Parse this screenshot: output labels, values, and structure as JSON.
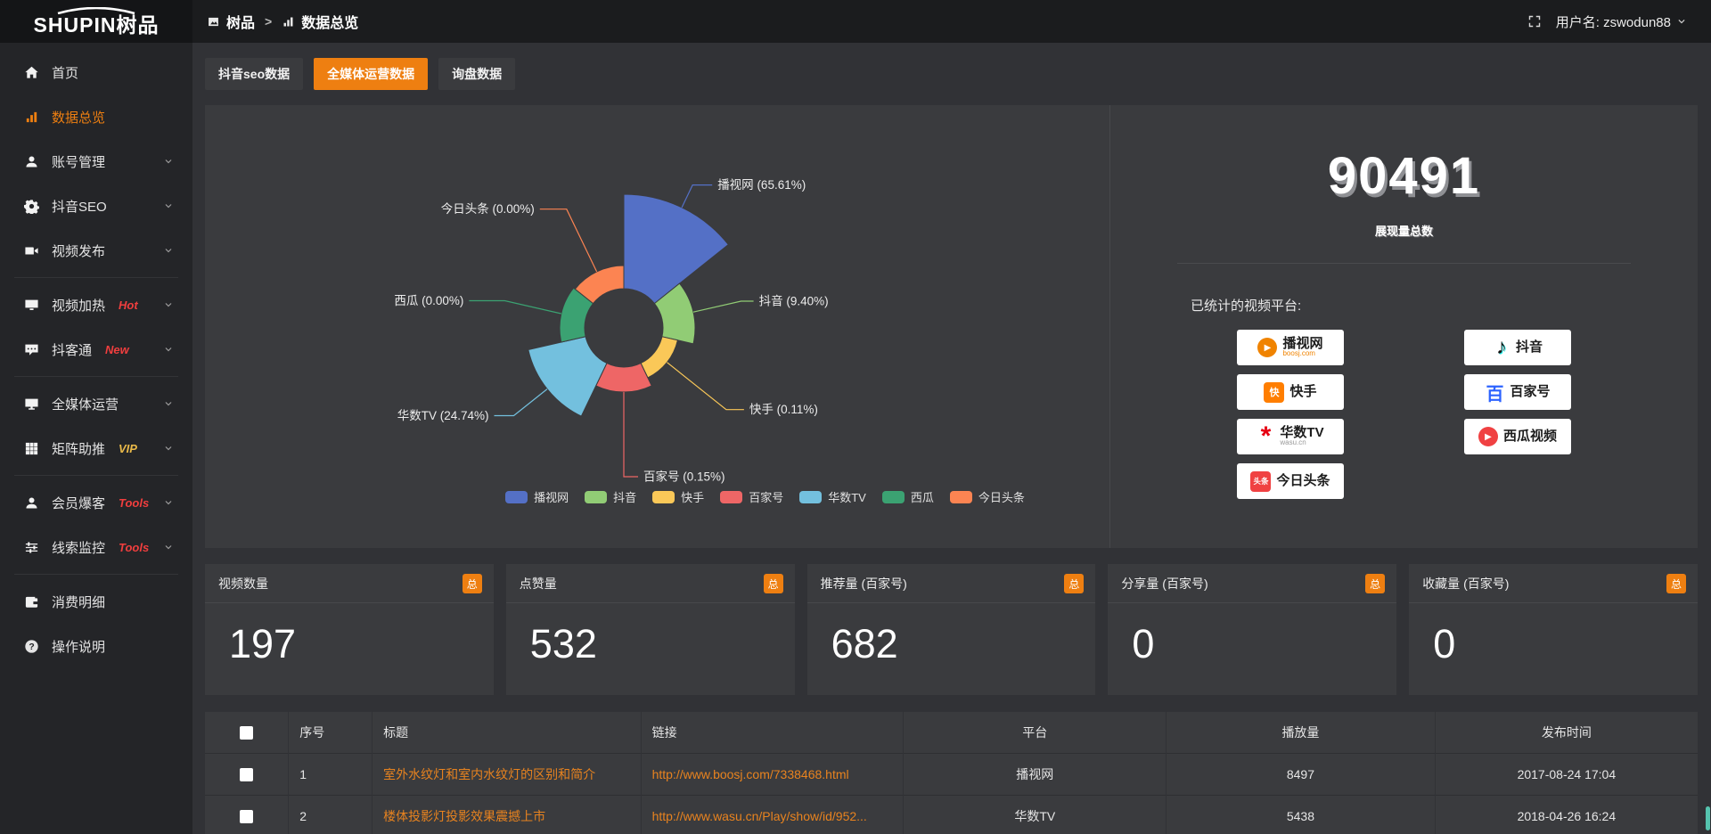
{
  "colors": {
    "accent": "#ee7f11",
    "panel": "#3a3b3e",
    "background": "#313236",
    "sidebar": "#242528",
    "topbar": "#1b1c1e",
    "link_orange": "#e8831f",
    "tag_red": "#f03e3e",
    "tag_yellow": "#e9b949",
    "scroll_green": "#55c3ae"
  },
  "brand": {
    "logo_text": "SHUPIN树品"
  },
  "topbar": {
    "breadcrumb": {
      "section": "树品",
      "separator": ">",
      "page": "数据总览"
    },
    "user_label": "用户名: zswodun88"
  },
  "sidebar": {
    "items": [
      {
        "id": "home",
        "icon": "home",
        "label": "首页"
      },
      {
        "id": "data-overview",
        "icon": "bar-chart",
        "label": "数据总览",
        "active": true
      },
      {
        "id": "account-management",
        "icon": "user",
        "label": "账号管理",
        "chevron": true
      },
      {
        "id": "douyin-seo",
        "icon": "gear",
        "label": "抖音SEO",
        "chevron": true
      },
      {
        "id": "video-publish",
        "icon": "video",
        "label": "视频发布",
        "chevron": true
      },
      {
        "type": "divider"
      },
      {
        "id": "video-heating",
        "icon": "monitor-play",
        "label": "视频加热",
        "tag": "Hot",
        "tag_color": "#f03e3e",
        "chevron": true
      },
      {
        "id": "douketong",
        "icon": "chat",
        "label": "抖客通",
        "tag": "New",
        "tag_color": "#f03e3e",
        "chevron": true
      },
      {
        "type": "divider"
      },
      {
        "id": "all-media-operation",
        "icon": "monitor",
        "label": "全媒体运营",
        "chevron": true
      },
      {
        "id": "matrix-boost",
        "icon": "grid",
        "label": "矩阵助推",
        "tag": "VIP",
        "tag_color": "#e9b949",
        "chevron": true
      },
      {
        "type": "divider"
      },
      {
        "id": "member-baoke",
        "icon": "user",
        "label": "会员爆客",
        "tag": "Tools",
        "tag_color": "#f03e3e",
        "chevron": true
      },
      {
        "id": "clue-monitor",
        "icon": "sliders",
        "label": "线索监控",
        "tag": "Tools",
        "tag_color": "#f03e3e",
        "chevron": true
      },
      {
        "type": "divider"
      },
      {
        "id": "consumption-detail",
        "icon": "wallet",
        "label": "消费明细"
      },
      {
        "id": "instructions",
        "icon": "help",
        "label": "操作说明"
      }
    ]
  },
  "tabs": {
    "active_index": 1,
    "items": [
      {
        "label": "抖音seo数据"
      },
      {
        "label": "全媒体运营数据"
      },
      {
        "label": "询盘数据"
      }
    ]
  },
  "chart_data": {
    "type": "pie",
    "subtype": "nightingale-rose",
    "title": "",
    "legend_position": "bottom",
    "total_label": "展现量总数",
    "total_value": 90491,
    "items": [
      {
        "name": "播视网",
        "pct": 65.61,
        "color": "#5470c6"
      },
      {
        "name": "抖音",
        "pct": 9.4,
        "color": "#91cc75"
      },
      {
        "name": "快手",
        "pct": 0.11,
        "color": "#fac858"
      },
      {
        "name": "百家号",
        "pct": 0.15,
        "color": "#ee6666"
      },
      {
        "name": "华数TV",
        "pct": 24.74,
        "color": "#73c0de"
      },
      {
        "name": "西瓜",
        "pct": 0.0,
        "color": "#3ba272"
      },
      {
        "name": "今日头条",
        "pct": 0.0,
        "color": "#fc8452"
      }
    ],
    "legend": [
      "播视网",
      "抖音",
      "快手",
      "百家号",
      "华数TV",
      "西瓜",
      "今日头条"
    ]
  },
  "summary": {
    "total": "90491",
    "caption": "展现量总数",
    "platforms_label": "已统计的视频平台:",
    "platform_columns": [
      [
        {
          "name": "播视网",
          "sub": "boosj.com",
          "icon": "boosj"
        },
        {
          "name": "快手",
          "icon": "kuaishou"
        },
        {
          "name": "华数TV",
          "sub": "wasu.cn",
          "icon": "wasu"
        },
        {
          "name": "今日头条",
          "icon": "toutiao"
        }
      ],
      [
        {
          "name": "抖音",
          "icon": "douyin"
        },
        {
          "name": "百家号",
          "icon": "baijiahao"
        },
        {
          "name": "西瓜视频",
          "icon": "xigua"
        }
      ]
    ]
  },
  "cards": [
    {
      "label": "视频数量",
      "badge": "总",
      "value": "197"
    },
    {
      "label": "点赞量",
      "badge": "总",
      "value": "532"
    },
    {
      "label": "推荐量 (百家号)",
      "badge": "总",
      "value": "682"
    },
    {
      "label": "分享量 (百家号)",
      "badge": "总",
      "value": "0"
    },
    {
      "label": "收藏量 (百家号)",
      "badge": "总",
      "value": "0"
    }
  ],
  "table": {
    "columns": [
      "序号",
      "标题",
      "链接",
      "平台",
      "播放量",
      "发布时间"
    ],
    "rows": [
      [
        "1",
        "室外水纹灯和室内水纹灯的区别和简介",
        "http://www.boosj.com/7338468.html",
        "播视网",
        "8497",
        "2017-08-24 17:04"
      ],
      [
        "2",
        "楼体投影灯投影效果震撼上市",
        "http://www.wasu.cn/Play/show/id/952...",
        "华数TV",
        "5438",
        "2018-04-26 16:24"
      ]
    ]
  }
}
